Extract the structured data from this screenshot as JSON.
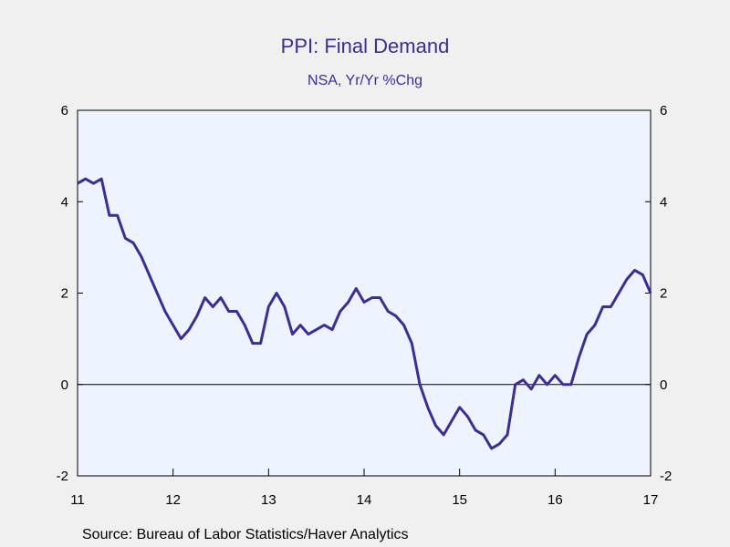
{
  "chart_data": {
    "type": "line",
    "title": "PPI: Final Demand",
    "subtitle": "NSA, Yr/Yr %Chg",
    "source": "Source:  Bureau of Labor Statistics/Haver Analytics",
    "xlabel": "",
    "ylabel": "",
    "ylim": [
      -2,
      6
    ],
    "yticks": [
      -2,
      0,
      2,
      4,
      6
    ],
    "xlim": [
      2011,
      2017
    ],
    "xtick_labels": [
      "11",
      "12",
      "13",
      "14",
      "15",
      "16",
      "17"
    ],
    "grid": false,
    "colors": {
      "line": "#3c2c9a",
      "plot_bg": "#eef4ff",
      "title": "#3c2c9a"
    },
    "series": [
      {
        "start": "2011-01",
        "frequency": "monthly",
        "values": [
          4.4,
          4.5,
          4.4,
          4.5,
          3.7,
          3.7,
          3.2,
          3.1,
          2.8,
          2.4,
          2.0,
          1.6,
          1.3,
          1.0,
          1.2,
          1.5,
          1.9,
          1.7,
          1.9,
          1.6,
          1.6,
          1.3,
          0.9,
          0.9,
          1.7,
          2.0,
          1.7,
          1.1,
          1.3,
          1.1,
          1.2,
          1.3,
          1.2,
          1.6,
          1.8,
          2.1,
          1.8,
          1.9,
          1.9,
          1.6,
          1.5,
          1.3,
          0.9,
          0.0,
          -0.5,
          -0.9,
          -1.1,
          -0.8,
          -0.5,
          -0.7,
          -1.0,
          -1.1,
          -1.4,
          -1.3,
          -1.1,
          0.0,
          0.1,
          -0.1,
          0.2,
          0.0,
          0.2,
          0.0,
          0.0,
          0.6,
          1.1,
          1.3,
          1.7,
          1.7,
          2.0,
          2.3,
          2.5,
          2.4,
          2.0
        ]
      }
    ]
  }
}
